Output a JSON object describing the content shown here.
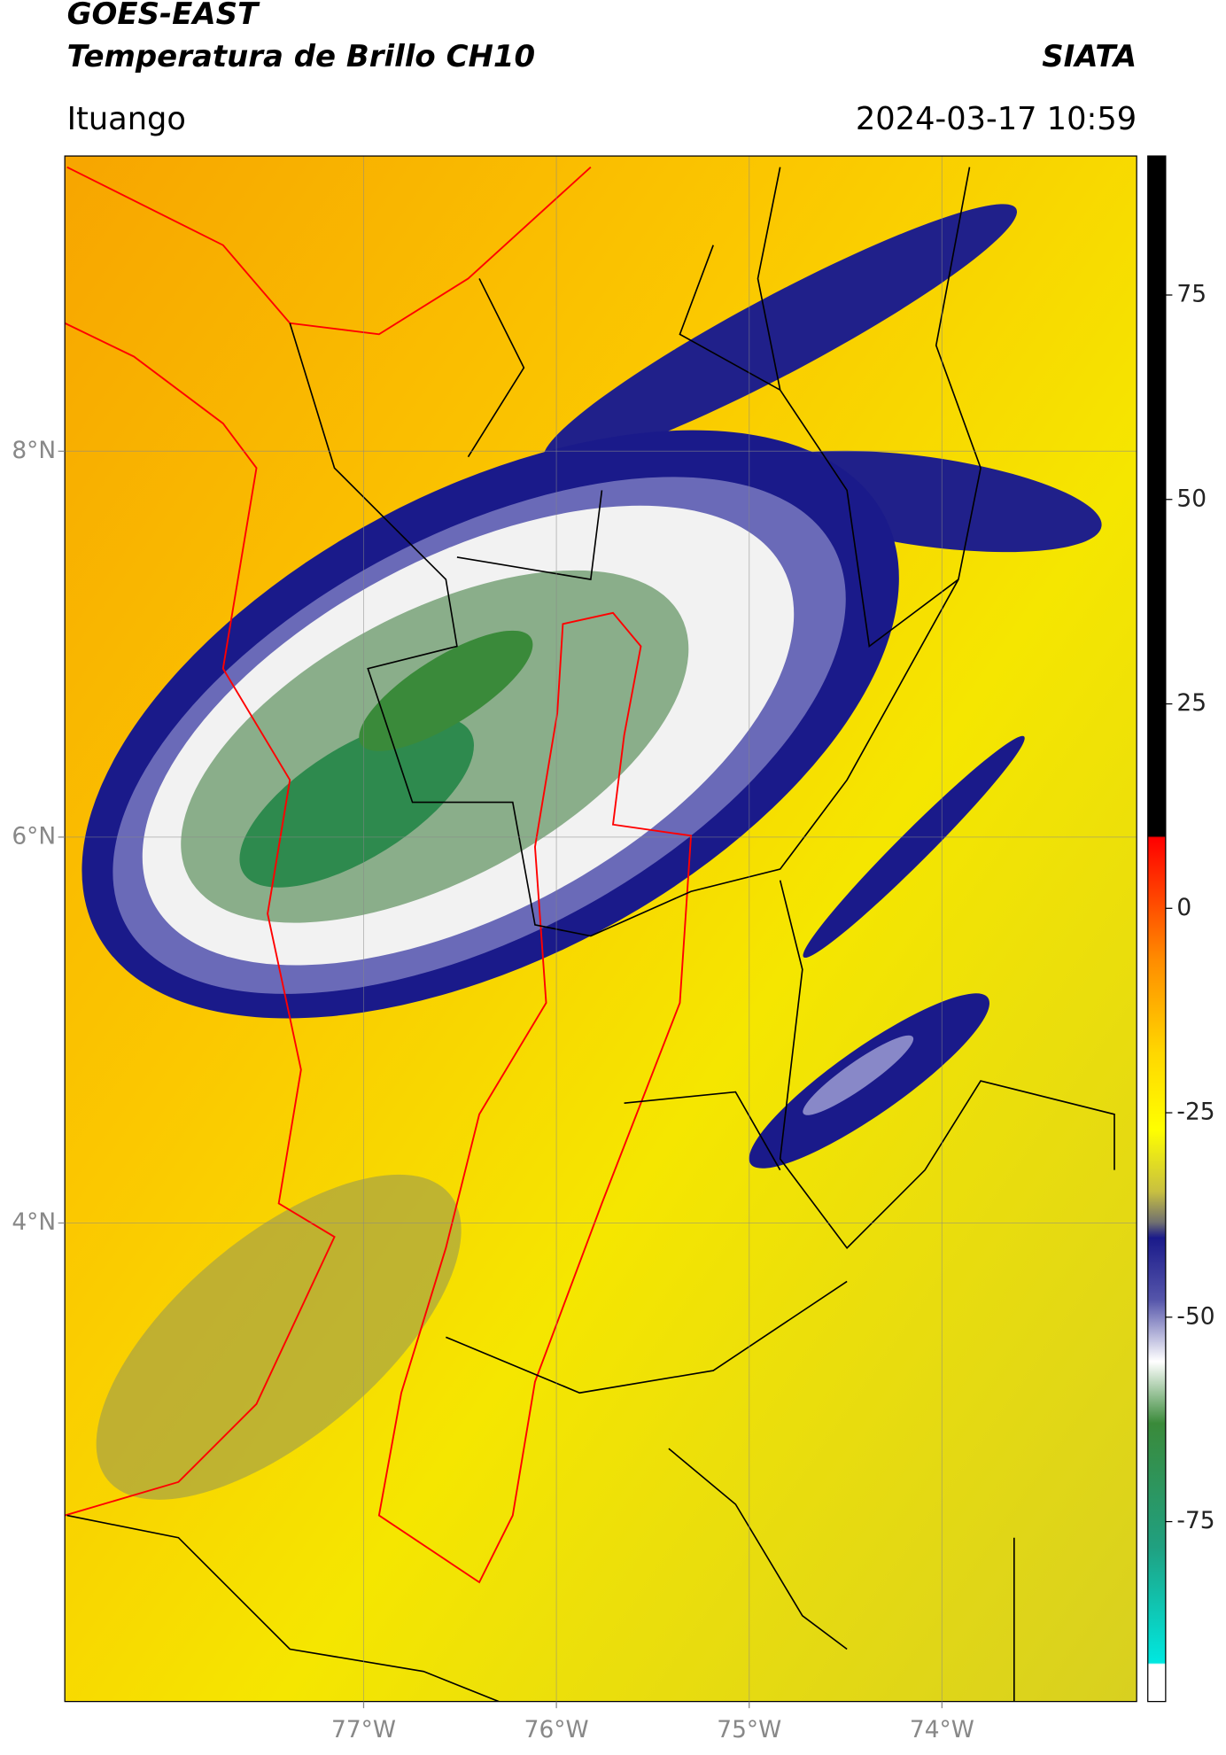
{
  "header": {
    "title": "GOES-EAST",
    "subtitle": "Temperatura de Brillo CH10",
    "brand": "SIATA",
    "location": "Ituango",
    "datetime": "2024-03-17 10:59"
  },
  "map": {
    "lon_range": [
      -78.55,
      -72.99
    ],
    "lat_range": [
      1.52,
      9.53
    ],
    "lon_ticks": [
      {
        "value": -77,
        "label": "77°W"
      },
      {
        "value": -76,
        "label": "76°W"
      },
      {
        "value": -75,
        "label": "75°W"
      },
      {
        "value": -74,
        "label": "74°W"
      }
    ],
    "lat_ticks": [
      {
        "value": 8,
        "label": "8°N"
      },
      {
        "value": 6,
        "label": "6°N"
      },
      {
        "value": 4,
        "label": "4°N"
      }
    ]
  },
  "colorbar": {
    "range": [
      -97,
      92
    ],
    "ticks": [
      75,
      50,
      25,
      0,
      -25,
      -50,
      -75
    ]
  }
}
